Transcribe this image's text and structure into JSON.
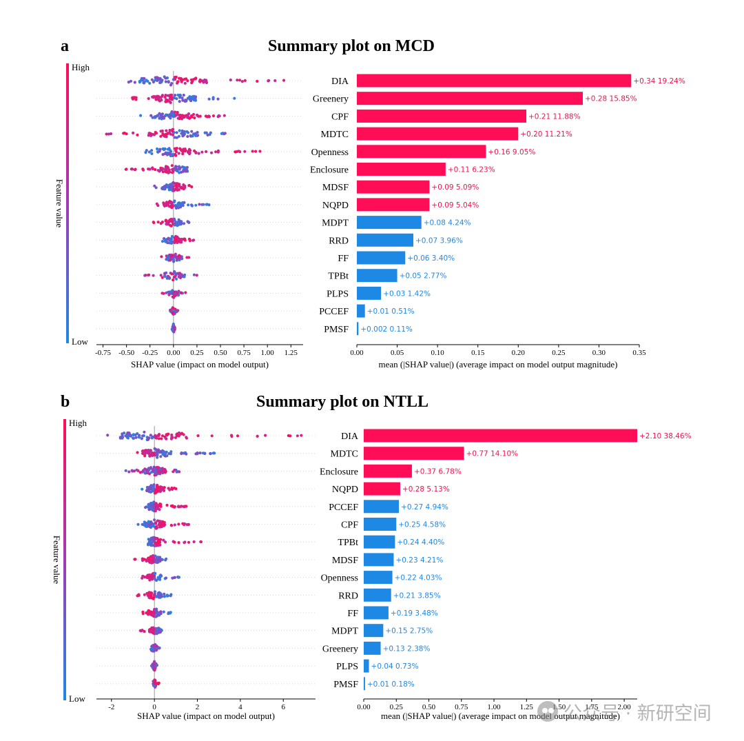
{
  "colors": {
    "high": "#ff0d57",
    "low": "#1e88e5",
    "bar_label_high": "#e8164f",
    "bar_label_low": "#1e88e5",
    "zero_line": "#999999"
  },
  "panels": [
    {
      "letter": "a",
      "title": "Summary plot on MCD"
    },
    {
      "letter": "b",
      "title": "Summary plot on NTLL"
    }
  ],
  "watermark": {
    "icon": "wechat-icon",
    "text": "公众号 · 新研空间"
  },
  "chart_data": [
    {
      "type": "scatter",
      "subtype": "shap-beeswarm",
      "panel": "a",
      "title": "Summary plot on MCD",
      "xlabel": "SHAP value (impact on model output)",
      "ylabel": "Feature value",
      "colorbar": {
        "high_label": "High",
        "low_label": "Low"
      },
      "xlim": [
        -0.82,
        1.38
      ],
      "xticks": [
        -0.75,
        -0.5,
        -0.25,
        0.0,
        0.25,
        0.5,
        0.75,
        1.0,
        1.25
      ],
      "xtick_labels": [
        "-0.75",
        "-0.50",
        "-0.25",
        "0.00",
        "0.25",
        "0.50",
        "0.75",
        "1.00",
        "1.25"
      ],
      "features": [
        "DIA",
        "Greenery",
        "CPF",
        "MDTC",
        "Openness",
        "Enclosure",
        "MDSF",
        "NQPD",
        "MDPT",
        "RRD",
        "FF",
        "TPBt",
        "PLPS",
        "PCCEF",
        "PMSF"
      ],
      "ranges": [
        [
          -0.6,
          1.2
        ],
        [
          -0.5,
          0.65
        ],
        [
          -0.4,
          0.57
        ],
        [
          -0.72,
          0.55
        ],
        [
          -0.3,
          1.0
        ],
        [
          -0.52,
          0.25
        ],
        [
          -0.28,
          0.3
        ],
        [
          -0.18,
          0.38
        ],
        [
          -0.22,
          0.18
        ],
        [
          -0.15,
          0.28
        ],
        [
          -0.16,
          0.22
        ],
        [
          -0.32,
          0.25
        ],
        [
          -0.13,
          0.14
        ],
        [
          -0.05,
          0.05
        ],
        [
          -0.02,
          0.02
        ]
      ],
      "high_side": [
        "positive",
        "negative",
        "positive",
        "negative",
        "positive",
        "negative",
        "positive",
        "negative",
        "negative",
        "positive",
        "mixed",
        "mixed",
        "mixed",
        "mixed",
        "mixed"
      ]
    },
    {
      "type": "bar",
      "orientation": "horizontal",
      "panel": "a",
      "xlabel": "mean (|SHAP value|) (average impact on model output magnitude)",
      "xlim": [
        0,
        0.35
      ],
      "xticks": [
        0.0,
        0.05,
        0.1,
        0.15,
        0.2,
        0.25,
        0.3,
        0.35
      ],
      "xtick_labels": [
        "0.00",
        "0.05",
        "0.10",
        "0.15",
        "0.20",
        "0.25",
        "0.30",
        "0.35"
      ],
      "categories": [
        "DIA",
        "Greenery",
        "CPF",
        "MDTC",
        "Openness",
        "Enclosure",
        "MDSF",
        "NQPD",
        "MDPT",
        "RRD",
        "FF",
        "TPBt",
        "PLPS",
        "PCCEF",
        "PMSF"
      ],
      "values": [
        0.34,
        0.28,
        0.21,
        0.2,
        0.16,
        0.11,
        0.09,
        0.09,
        0.08,
        0.07,
        0.06,
        0.05,
        0.03,
        0.01,
        0.002
      ],
      "percents": [
        19.24,
        15.85,
        11.88,
        11.21,
        9.05,
        6.23,
        5.09,
        5.04,
        4.24,
        3.96,
        3.4,
        2.77,
        1.42,
        0.51,
        0.11
      ],
      "labels": [
        "+0.34 19.24%",
        "+0.28 15.85%",
        "+0.21 11.88%",
        "+0.20 11.21%",
        "+0.16 9.05%",
        "+0.11 6.23%",
        "+0.09 5.09%",
        "+0.09 5.04%",
        "+0.08 4.24%",
        "+0.07 3.96%",
        "+0.06 3.40%",
        "+0.05 2.77%",
        "+0.03 1.42%",
        "+0.01 0.51%",
        "+0.002 0.11%"
      ],
      "bar_colors": [
        "high",
        "high",
        "high",
        "high",
        "high",
        "high",
        "high",
        "high",
        "low",
        "low",
        "low",
        "low",
        "low",
        "low",
        "low"
      ]
    },
    {
      "type": "scatter",
      "subtype": "shap-beeswarm",
      "panel": "b",
      "title": "Summary plot on NTLL",
      "xlabel": "SHAP value (impact on model output)",
      "ylabel": "Feature value",
      "colorbar": {
        "high_label": "High",
        "low_label": "Low"
      },
      "xlim": [
        -2.7,
        7.5
      ],
      "xticks": [
        -2,
        0,
        2,
        4,
        6
      ],
      "xtick_labels": [
        "-2",
        "0",
        "2",
        "4",
        "6"
      ],
      "features": [
        "DIA",
        "MDTC",
        "Enclosure",
        "NQPD",
        "PCCEF",
        "CPF",
        "TPBt",
        "MDSF",
        "Openness",
        "RRD",
        "FF",
        "MDPT",
        "Greenery",
        "PLPS",
        "PMSF"
      ],
      "ranges": [
        [
          -2.7,
          7.0
        ],
        [
          -1.0,
          2.8
        ],
        [
          -1.4,
          1.2
        ],
        [
          -0.6,
          1.3
        ],
        [
          -0.5,
          1.5
        ],
        [
          -0.8,
          1.8
        ],
        [
          -0.5,
          2.2
        ],
        [
          -1.0,
          0.6
        ],
        [
          -0.6,
          1.2
        ],
        [
          -0.8,
          0.9
        ],
        [
          -0.6,
          0.9
        ],
        [
          -0.8,
          0.4
        ],
        [
          -0.4,
          0.3
        ],
        [
          -0.2,
          0.2
        ],
        [
          -0.1,
          0.4
        ]
      ],
      "high_side": [
        "positive",
        "negative",
        "mixed",
        "positive",
        "positive",
        "positive",
        "positive",
        "negative",
        "negative",
        "negative",
        "negative",
        "negative",
        "mixed",
        "mixed",
        "positive"
      ]
    },
    {
      "type": "bar",
      "orientation": "horizontal",
      "panel": "b",
      "xlabel": "mean (|SHAP value|) (average impact on model output magnitude)",
      "xlim": [
        0,
        2.1
      ],
      "xticks": [
        0.0,
        0.25,
        0.5,
        0.75,
        1.0,
        1.25,
        1.5,
        1.75,
        2.0
      ],
      "xtick_labels": [
        "0.00",
        "0.25",
        "0.50",
        "0.75",
        "1.00",
        "1.25",
        "1.50",
        "1.75",
        "2.00"
      ],
      "categories": [
        "DIA",
        "MDTC",
        "Enclosure",
        "NQPD",
        "PCCEF",
        "CPF",
        "TPBt",
        "MDSF",
        "Openness",
        "RRD",
        "FF",
        "MDPT",
        "Greenery",
        "PLPS",
        "PMSF"
      ],
      "values": [
        2.1,
        0.77,
        0.37,
        0.28,
        0.27,
        0.25,
        0.24,
        0.23,
        0.22,
        0.21,
        0.19,
        0.15,
        0.13,
        0.04,
        0.01
      ],
      "percents": [
        38.46,
        14.1,
        6.78,
        5.13,
        4.94,
        4.58,
        4.4,
        4.21,
        4.03,
        3.85,
        3.48,
        2.75,
        2.38,
        0.73,
        0.18
      ],
      "labels": [
        "+2.10 38.46%",
        "+0.77 14.10%",
        "+0.37 6.78%",
        "+0.28 5.13%",
        "+0.27 4.94%",
        "+0.25 4.58%",
        "+0.24 4.40%",
        "+0.23 4.21%",
        "+0.22 4.03%",
        "+0.21 3.85%",
        "+0.19 3.48%",
        "+0.15 2.75%",
        "+0.13 2.38%",
        "+0.04 0.73%",
        "+0.01 0.18%"
      ],
      "bar_colors": [
        "high",
        "high",
        "high",
        "high",
        "low",
        "low",
        "low",
        "low",
        "low",
        "low",
        "low",
        "low",
        "low",
        "low",
        "low"
      ]
    }
  ]
}
